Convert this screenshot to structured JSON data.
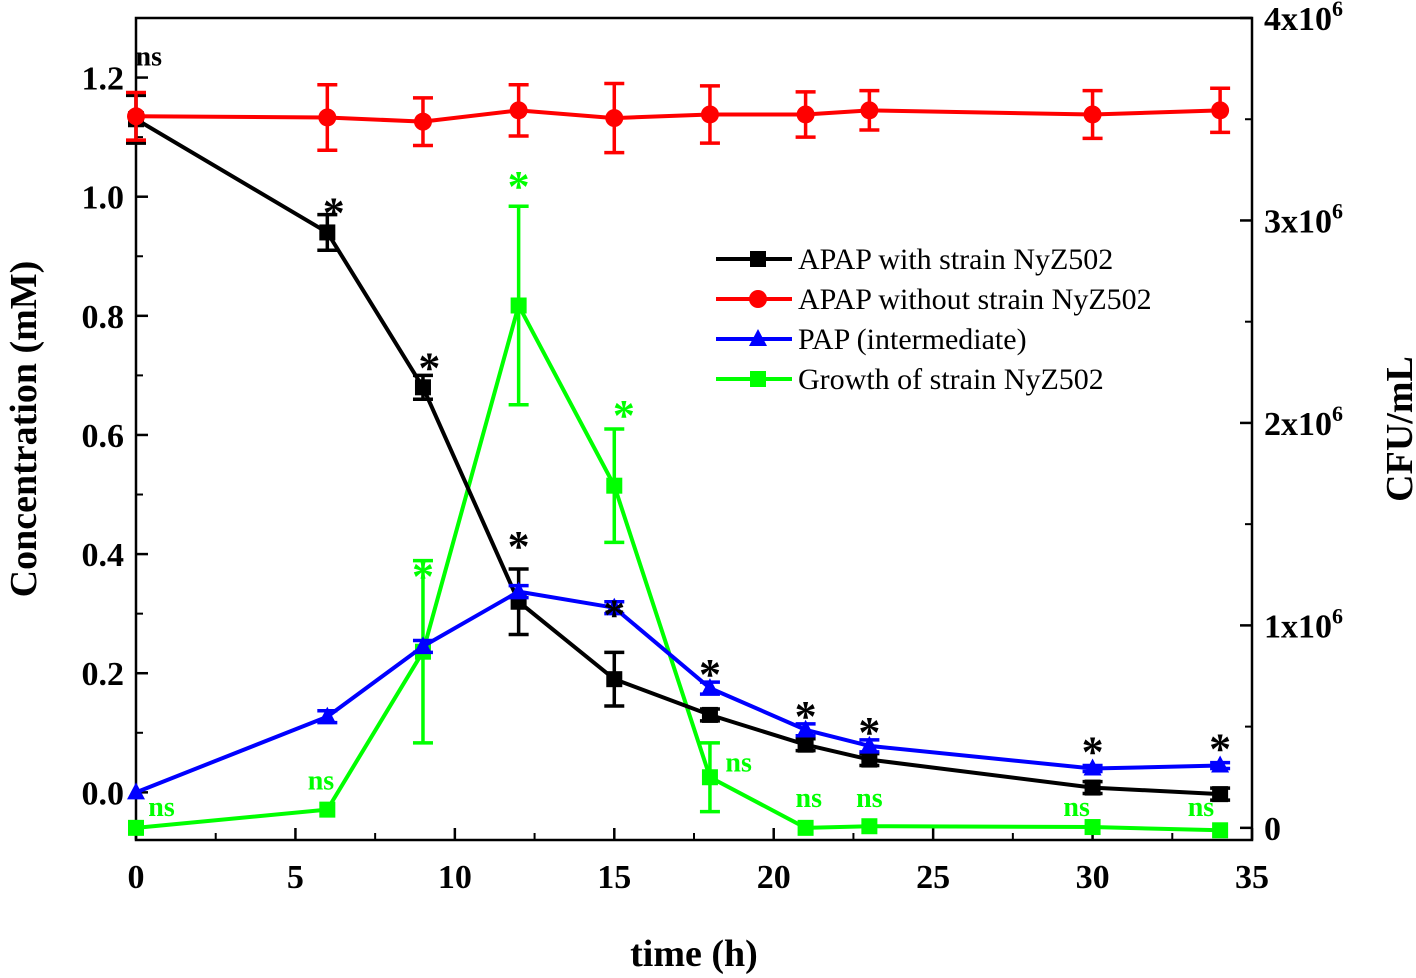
{
  "chart_data": {
    "type": "line",
    "title": "",
    "xlabel": "time (h)",
    "ylabel": "Concentration (mM)",
    "y2label": "CFU/mL",
    "xlim": [
      0,
      35
    ],
    "ylim": [
      -0.08,
      1.3
    ],
    "y2lim": [
      -60000,
      4000000
    ],
    "x_ticks": [
      0,
      5,
      10,
      15,
      20,
      25,
      30,
      35
    ],
    "x_tick_labels": [
      "0",
      "5",
      "10",
      "15",
      "20",
      "25",
      "30",
      "35"
    ],
    "y_ticks": [
      0.0,
      0.2,
      0.4,
      0.6,
      0.8,
      1.0,
      1.2
    ],
    "y_tick_labels": [
      "0.0",
      "0.2",
      "0.4",
      "0.6",
      "0.8",
      "1.0",
      "1.2"
    ],
    "y2_ticks": [
      0,
      1000000,
      2000000,
      3000000,
      4000000
    ],
    "y2_tick_labels": [
      {
        "base": "0",
        "exp": ""
      },
      {
        "base": "1x10",
        "exp": "6"
      },
      {
        "base": "2x10",
        "exp": "6"
      },
      {
        "base": "3x10",
        "exp": "6"
      },
      {
        "base": "4x10",
        "exp": "6"
      }
    ],
    "legend_position": "upper-right",
    "series": [
      {
        "name": "APAP with strain NyZ502",
        "color": "#000000",
        "marker": "square",
        "axis": "left",
        "x": [
          0,
          6,
          9,
          12,
          15,
          18,
          21,
          23,
          30,
          34
        ],
        "y": [
          1.13,
          0.94,
          0.68,
          0.32,
          0.19,
          0.13,
          0.08,
          0.055,
          0.008,
          -0.003
        ],
        "err": [
          0.04,
          0.03,
          0.02,
          0.055,
          0.045,
          0.01,
          0.01,
          0.01,
          0.01,
          0.01
        ]
      },
      {
        "name": "APAP without strain NyZ502",
        "color": "#ff0000",
        "marker": "circle",
        "axis": "left",
        "x": [
          0,
          6,
          9,
          12,
          15,
          18,
          21,
          23,
          30,
          34
        ],
        "y": [
          1.135,
          1.133,
          1.126,
          1.145,
          1.132,
          1.138,
          1.138,
          1.145,
          1.138,
          1.145
        ],
        "err": [
          0.04,
          0.055,
          0.04,
          0.043,
          0.058,
          0.048,
          0.038,
          0.033,
          0.04,
          0.037
        ]
      },
      {
        "name": "PAP (intermediate)",
        "color": "#0000ff",
        "marker": "triangle",
        "axis": "left",
        "x": [
          0,
          6,
          9,
          12,
          15,
          18,
          21,
          23,
          30,
          34
        ],
        "y": [
          0.0,
          0.127,
          0.245,
          0.337,
          0.31,
          0.175,
          0.105,
          0.078,
          0.04,
          0.045
        ],
        "err": [
          0.0,
          0.01,
          0.01,
          0.01,
          0.01,
          0.01,
          0.01,
          0.01,
          0.005,
          0.005
        ]
      },
      {
        "name": "Growth of strain NyZ502",
        "color": "#00ff00",
        "marker": "square",
        "axis": "right",
        "x": [
          0,
          6,
          9,
          12,
          15,
          18,
          21,
          23,
          30,
          34
        ],
        "y": [
          0,
          90000,
          870000,
          2580000,
          1690000,
          250000,
          0,
          8000,
          4000,
          -12000
        ],
        "err": [
          0,
          0,
          450000,
          490000,
          280000,
          170000,
          0,
          0,
          0,
          0
        ]
      }
    ],
    "annotations": [
      {
        "text": "ns",
        "x": 0.4,
        "y": 1.22,
        "axis": "left",
        "color": "#000000",
        "kind": "ns"
      },
      {
        "text": "*",
        "x": 6.2,
        "y": 0.975,
        "axis": "left",
        "color": "#000000",
        "kind": "star"
      },
      {
        "text": "*",
        "x": 9.2,
        "y": 0.715,
        "axis": "left",
        "color": "#000000",
        "kind": "star"
      },
      {
        "text": "*",
        "x": 12.0,
        "y": 0.415,
        "axis": "left",
        "color": "#000000",
        "kind": "star"
      },
      {
        "text": "*",
        "x": 15.0,
        "y": 0.3,
        "axis": "left",
        "color": "#000000",
        "kind": "star"
      },
      {
        "text": "*",
        "x": 18.0,
        "y": 0.2,
        "axis": "left",
        "color": "#000000",
        "kind": "star"
      },
      {
        "text": "*",
        "x": 21.0,
        "y": 0.13,
        "axis": "left",
        "color": "#000000",
        "kind": "star"
      },
      {
        "text": "*",
        "x": 23.0,
        "y": 0.103,
        "axis": "left",
        "color": "#000000",
        "kind": "star"
      },
      {
        "text": "*",
        "x": 30.0,
        "y": 0.07,
        "axis": "left",
        "color": "#000000",
        "kind": "star"
      },
      {
        "text": "*",
        "x": 34.0,
        "y": 0.075,
        "axis": "left",
        "color": "#000000",
        "kind": "star"
      },
      {
        "text": "*",
        "x": 12.0,
        "y": 1.02,
        "axis": "left",
        "color": "#00ff00",
        "kind": "star"
      },
      {
        "text": "*",
        "x": 9.0,
        "y": 0.365,
        "axis": "left",
        "color": "#00ff00",
        "kind": "star"
      },
      {
        "text": "*",
        "x": 15.3,
        "y": 0.635,
        "axis": "left",
        "color": "#00ff00",
        "kind": "star"
      },
      {
        "text": "ns",
        "x": 0.8,
        "y": -0.04,
        "axis": "left",
        "color": "#00ff00",
        "kind": "ns"
      },
      {
        "text": "ns",
        "x": 5.8,
        "y": 0.005,
        "axis": "left",
        "color": "#00ff00",
        "kind": "ns"
      },
      {
        "text": "ns",
        "x": 18.9,
        "y": 0.035,
        "axis": "left",
        "color": "#00ff00",
        "kind": "ns"
      },
      {
        "text": "ns",
        "x": 21.1,
        "y": -0.025,
        "axis": "left",
        "color": "#00ff00",
        "kind": "ns"
      },
      {
        "text": "ns",
        "x": 23.0,
        "y": -0.025,
        "axis": "left",
        "color": "#00ff00",
        "kind": "ns"
      },
      {
        "text": "ns",
        "x": 29.5,
        "y": -0.04,
        "axis": "left",
        "color": "#00ff00",
        "kind": "ns"
      },
      {
        "text": "ns",
        "x": 33.4,
        "y": -0.04,
        "axis": "left",
        "color": "#00ff00",
        "kind": "ns"
      }
    ]
  }
}
